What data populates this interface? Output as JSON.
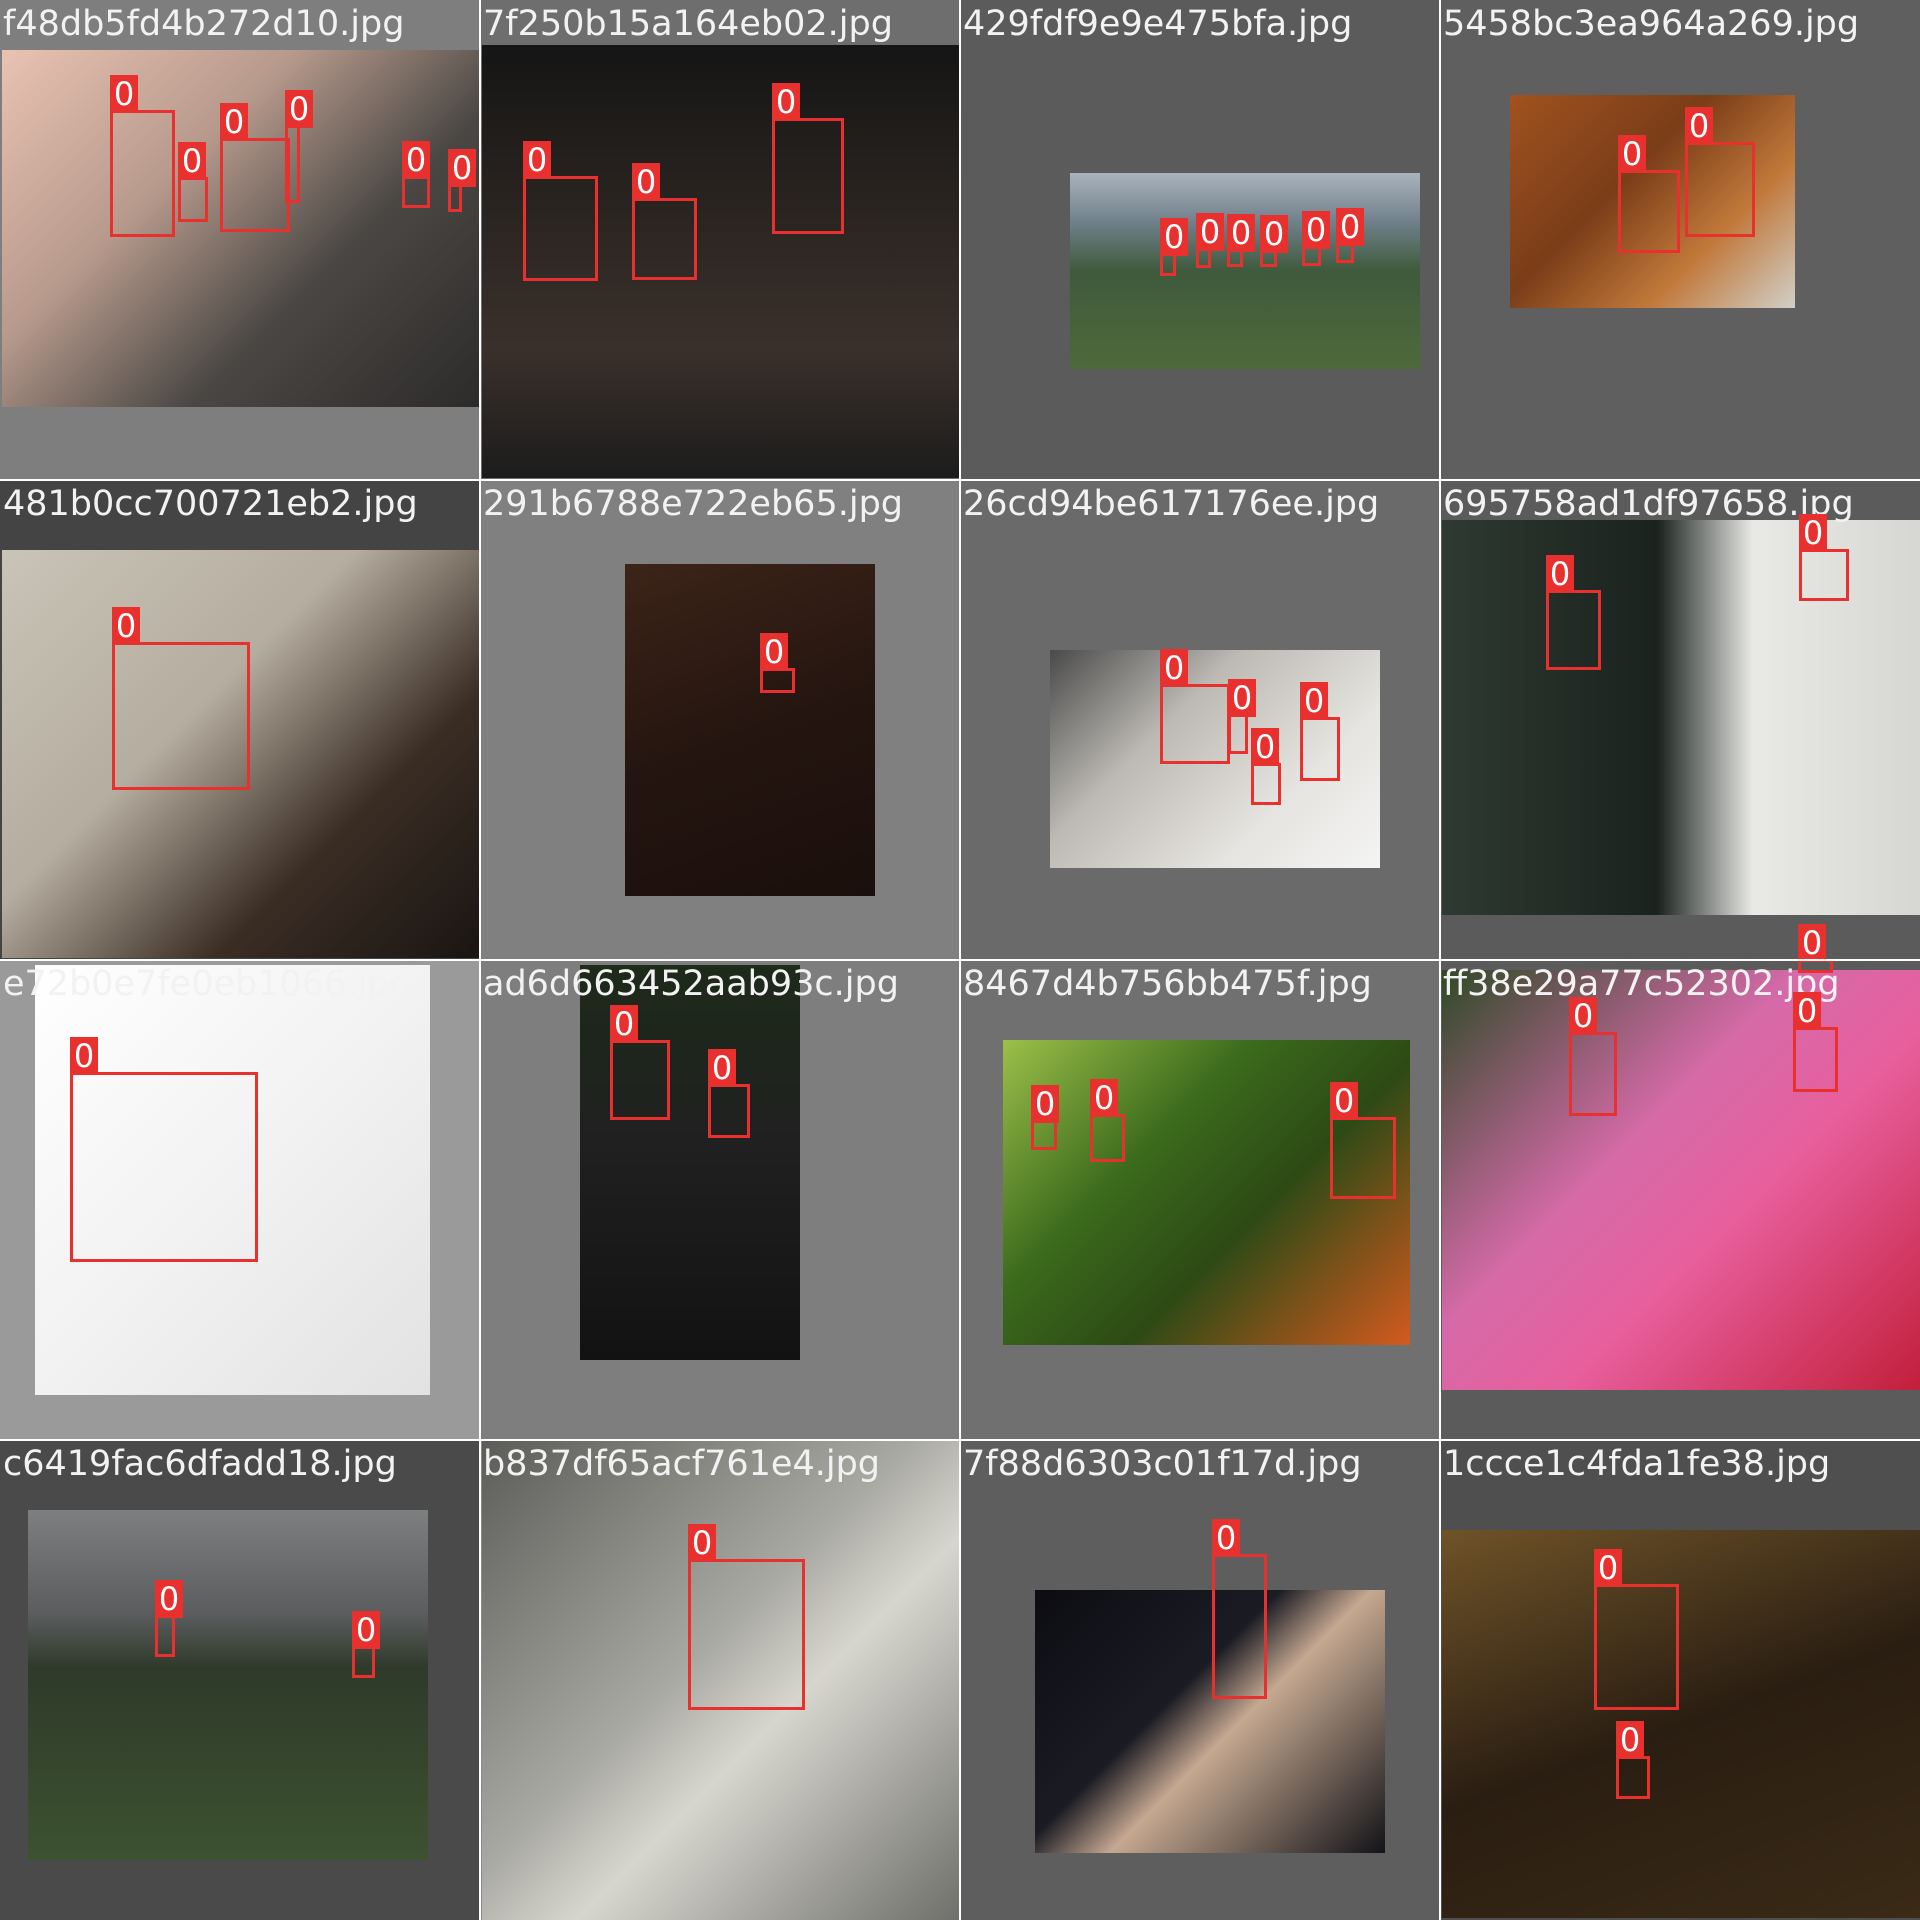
{
  "colors": {
    "box": "#e8312f",
    "label_text": "#ffffff",
    "filename_text": "#f2f2f2"
  },
  "tiles": [
    {
      "filename": "f48db5fd4b272d10.jpg",
      "bg": "#7e7e7e",
      "photo_fill": "linear-gradient(135deg,#e9c2b2 0%,#b79a8c 35%,#4a4744 65%,#2d2b2a 100%)",
      "boxes": [
        {
          "label": "0"
        },
        {
          "label": "0"
        },
        {
          "label": "0"
        },
        {
          "label": "0"
        },
        {
          "label": "0"
        },
        {
          "label": "0"
        }
      ]
    },
    {
      "filename": "7f250b15a164eb02.jpg",
      "bg": "#6e6e6e",
      "photo_fill": "linear-gradient(180deg,#151515 0%,#2b2521 40%,#3a302b 70%,#1c1c1c 100%)",
      "boxes": [
        {
          "label": "0"
        },
        {
          "label": "0"
        },
        {
          "label": "0"
        }
      ]
    },
    {
      "filename": "429fdf9e9e475bfa.jpg",
      "bg": "#5b5b5b",
      "photo_fill": "linear-gradient(180deg,#a9b3bd 0%,#70808a 25%,#3f5a3c 50%,#4e6a3a 100%)",
      "boxes": [
        {
          "label": "0"
        },
        {
          "label": "0"
        },
        {
          "label": "0"
        },
        {
          "label": "0"
        },
        {
          "label": "0"
        },
        {
          "label": "0"
        }
      ]
    },
    {
      "filename": "5458bc3ea964a269.jpg",
      "bg": "#5f5f5f",
      "photo_fill": "linear-gradient(135deg,#a1521f 0%,#7a3d18 40%,#c1783a 70%,#d0d0c8 100%)",
      "boxes": [
        {
          "label": "0"
        },
        {
          "label": "0"
        }
      ]
    },
    {
      "filename": "481b0cc700721eb2.jpg",
      "bg": "#444444",
      "photo_fill": "linear-gradient(135deg,#c9c4b8 0%,#b5ad9f 40%,#3a2d24 70%,#1a1512 100%)",
      "boxes": [
        {
          "label": "0"
        }
      ]
    },
    {
      "filename": "291b6788e722eb65.jpg",
      "bg": "#808080",
      "photo_fill": "linear-gradient(160deg,#3c2418 0%,#251510 50%,#1a0f0c 100%)",
      "boxes": [
        {
          "label": "0"
        }
      ]
    },
    {
      "filename": "26cd94be617176ee.jpg",
      "bg": "#6a6a6a",
      "photo_fill": "linear-gradient(135deg,#4a4a4a 0%,#bdbab4 35%,#e6e4e0 70%,#f4f4f4 100%)",
      "boxes": [
        {
          "label": "0"
        },
        {
          "label": "0"
        },
        {
          "label": "0"
        },
        {
          "label": "0"
        }
      ]
    },
    {
      "filename": "695758ad1df97658.jpg",
      "bg": "#5b5b5b",
      "photo_fill": "linear-gradient(90deg,#2e3a32 0%,#1a221d 45%,#e9e9e6 65%,#d6d6d2 100%)",
      "boxes": [
        {
          "label": "0"
        },
        {
          "label": "0"
        }
      ]
    },
    {
      "filename": "e72b0e7fe0eb1066.jpg",
      "bg": "#9a9a9a",
      "photo_fill": "linear-gradient(135deg,#ffffff 0%,#f2f2f2 50%,#e2e2e2 100%)",
      "boxes": [
        {
          "label": "0"
        }
      ]
    },
    {
      "filename": "ad6d663452aab93c.jpg",
      "bg": "#7e7e7e",
      "photo_fill": "linear-gradient(180deg,#1d2a1a 0%,#202020 45%,#121212 100%)",
      "boxes": [
        {
          "label": "0"
        },
        {
          "label": "0"
        }
      ]
    },
    {
      "filename": "8467d4b756bb475f.jpg",
      "bg": "#707070",
      "photo_fill": "linear-gradient(135deg,#9cc04a 0%,#3c6b1c 35%,#2c4a15 60%,#d35a1f 100%)",
      "boxes": [
        {
          "label": "0"
        },
        {
          "label": "0"
        },
        {
          "label": "0"
        }
      ]
    },
    {
      "filename": "ff38e29a77c52302.jpg",
      "bg": "#5b5b5b",
      "photo_fill": "linear-gradient(135deg,#2e4a26 0%,#d56aa8 40%,#e85f9d 60%,#c21f3b 100%)",
      "boxes": [
        {
          "label": "0"
        },
        {
          "label": "0"
        },
        {
          "label": "0"
        }
      ]
    },
    {
      "filename": "c6419fac6dfadd18.jpg",
      "bg": "#4a4a4a",
      "photo_fill": "linear-gradient(180deg,#7d7f80 0%,#5a5c5d 30%,#2f3a2a 45%,#3c5230 100%)",
      "boxes": [
        {
          "label": "0"
        },
        {
          "label": "0"
        }
      ]
    },
    {
      "filename": "b837df65acf761e4.jpg",
      "bg": "#8a8a8a",
      "photo_fill": "linear-gradient(135deg,#5b5b58 0%,#a9a9a3 45%,#d7d6ce 60%,#6f6f6b 100%)",
      "boxes": [
        {
          "label": "0"
        }
      ]
    },
    {
      "filename": "7f88d6303c01f17d.jpg",
      "bg": "#5e5e5e",
      "photo_fill": "linear-gradient(135deg,#0c0c12 0%,#1b1b24 40%,#c5a890 55%,#131318 100%)",
      "boxes": [
        {
          "label": "0"
        }
      ]
    },
    {
      "filename": "1ccce1c4fda1fe38.jpg",
      "bg": "#4f4f4f",
      "photo_fill": "linear-gradient(160deg,#6f5328 0%,#2a1e12 50%,#3a2a16 100%)",
      "boxes": [
        {
          "label": "0"
        },
        {
          "label": "0"
        }
      ]
    }
  ]
}
